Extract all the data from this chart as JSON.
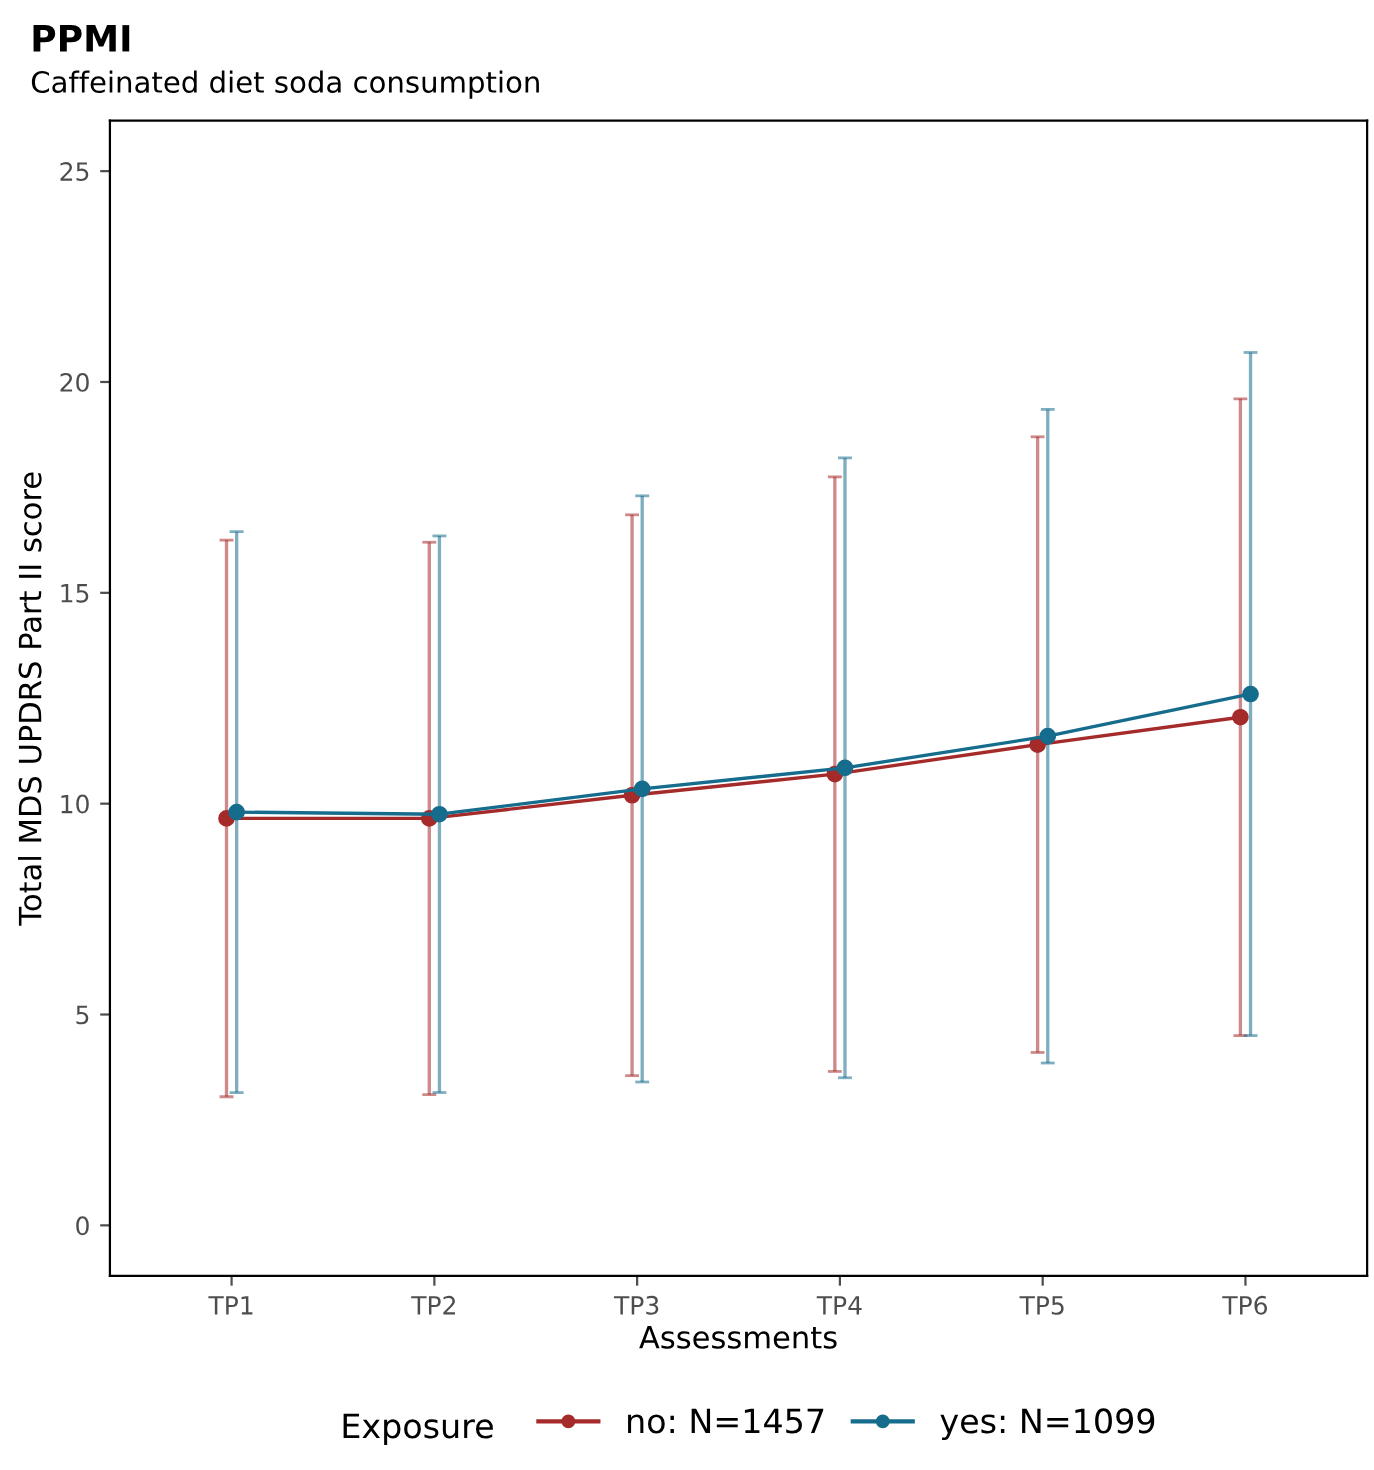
{
  "chart_data": {
    "type": "line",
    "title": "PPMI",
    "subtitle": "Caffeinated diet soda consumption",
    "xlabel": "Assessments",
    "ylabel": "Total MDS UPDRS Part II score",
    "legend_title": "Exposure",
    "categories": [
      "TP1",
      "TP2",
      "TP3",
      "TP4",
      "TP5",
      "TP6"
    ],
    "series": [
      {
        "name": "no: N=1457",
        "color": "#a52a2a",
        "values": [
          9.65,
          9.65,
          10.2,
          10.7,
          11.4,
          12.05
        ],
        "errors": [
          6.6,
          6.55,
          6.65,
          7.05,
          7.3,
          7.55
        ]
      },
      {
        "name": "yes: N=1099",
        "color": "#156c8c",
        "values": [
          9.8,
          9.75,
          10.35,
          10.85,
          11.6,
          12.6
        ],
        "errors": [
          6.65,
          6.6,
          6.95,
          7.35,
          7.75,
          8.1
        ]
      }
    ],
    "ylim": [
      -1.2,
      26.2
    ],
    "yticks": [
      0,
      5,
      10,
      15,
      20,
      25
    ],
    "grid": false,
    "legend": "bottom",
    "marker": "circle",
    "line_style": "solid"
  }
}
